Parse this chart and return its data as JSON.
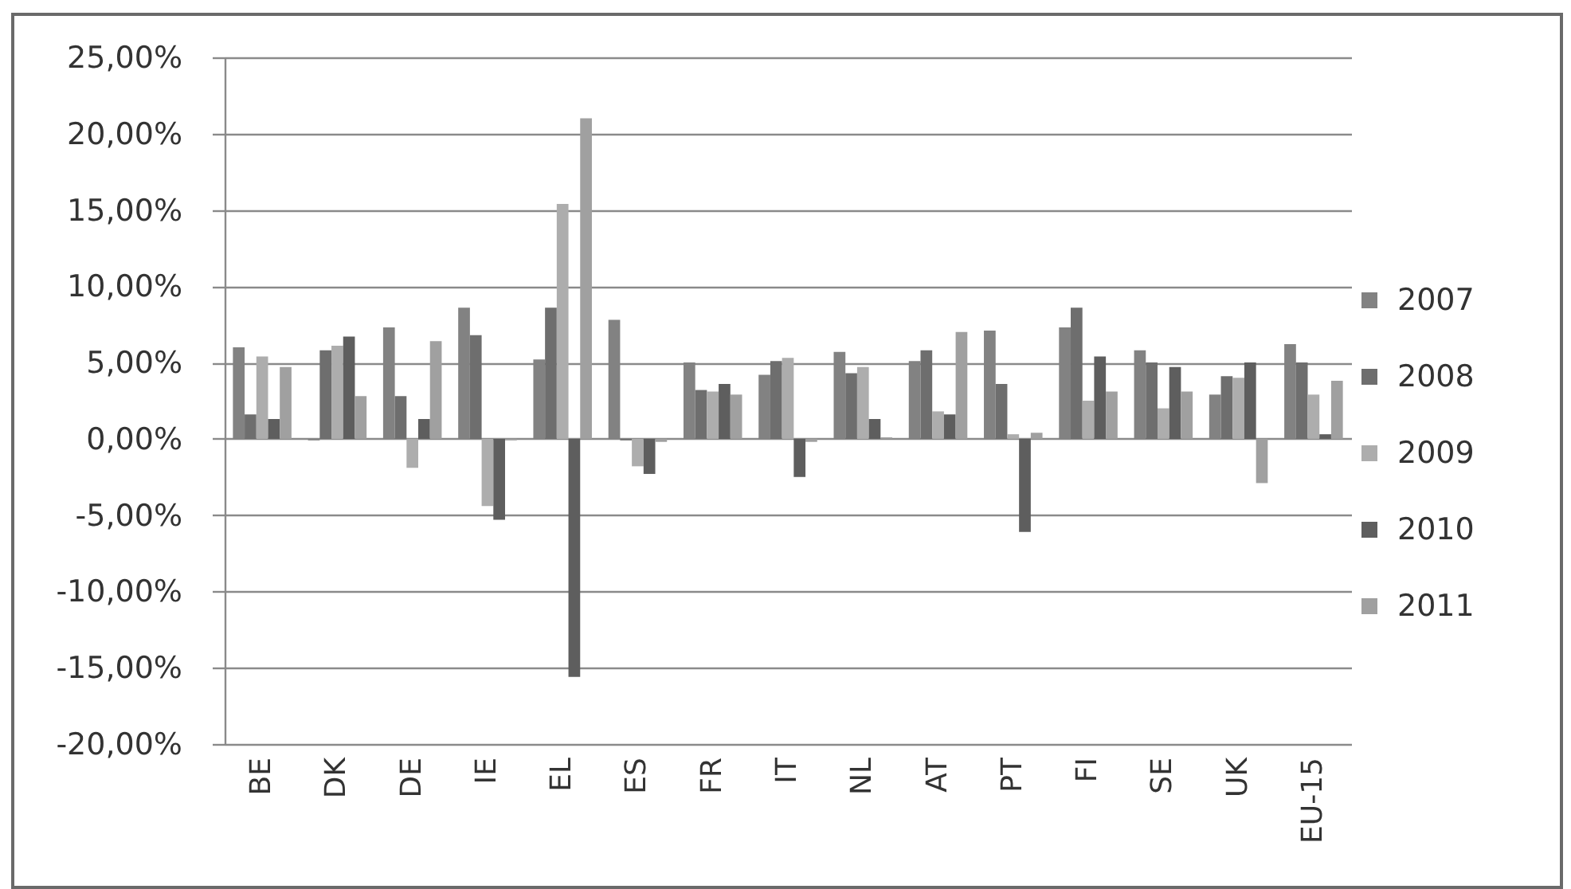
{
  "chart_data": {
    "type": "bar",
    "categories": [
      "BE",
      "DK",
      "DE",
      "IE",
      "EL",
      "ES",
      "FR",
      "IT",
      "NL",
      "AT",
      "PT",
      "FI",
      "SE",
      "UK",
      "EU-15"
    ],
    "series": [
      {
        "name": "2007",
        "color": "#828282",
        "values": [
          6.0,
          -0.1,
          7.3,
          8.6,
          5.2,
          7.8,
          5.0,
          4.2,
          5.7,
          5.1,
          7.1,
          7.3,
          5.8,
          2.9,
          6.2
        ]
      },
      {
        "name": "2008",
        "color": "#6e6e6e",
        "values": [
          1.6,
          5.8,
          2.8,
          6.8,
          8.6,
          -0.1,
          3.2,
          5.1,
          4.3,
          5.8,
          3.6,
          8.6,
          5.0,
          4.1,
          5.0
        ]
      },
      {
        "name": "2009",
        "color": "#adadad",
        "values": [
          5.4,
          6.1,
          -1.9,
          -4.4,
          15.4,
          -1.8,
          3.1,
          5.3,
          4.7,
          1.8,
          0.3,
          2.5,
          2.0,
          4.0,
          2.9
        ]
      },
      {
        "name": "2010",
        "color": "#5e5e5e",
        "values": [
          1.3,
          6.7,
          1.3,
          -5.3,
          -15.6,
          -2.3,
          3.6,
          -2.5,
          1.3,
          1.6,
          -6.1,
          5.4,
          4.7,
          5.0,
          0.3
        ]
      },
      {
        "name": "2011",
        "color": "#a0a0a0",
        "values": [
          4.7,
          2.8,
          6.4,
          -0.1,
          21.0,
          -0.2,
          2.9,
          -0.2,
          0.1,
          7.0,
          0.4,
          3.1,
          3.1,
          -2.9,
          3.8
        ]
      }
    ],
    "ylim": [
      -20,
      25
    ],
    "yticks": [
      {
        "value": -20,
        "label": "-20,00%"
      },
      {
        "value": -15,
        "label": "-15,00%"
      },
      {
        "value": -10,
        "label": "-10,00%"
      },
      {
        "value": -5,
        "label": "-5,00%"
      },
      {
        "value": 0,
        "label": "0,00%"
      },
      {
        "value": 5,
        "label": "5,00%"
      },
      {
        "value": 10,
        "label": "10,00%"
      },
      {
        "value": 15,
        "label": "15,00%"
      },
      {
        "value": 20,
        "label": "20,00%"
      },
      {
        "value": 25,
        "label": "25,00%"
      }
    ],
    "grid": "y",
    "legend": "right"
  }
}
